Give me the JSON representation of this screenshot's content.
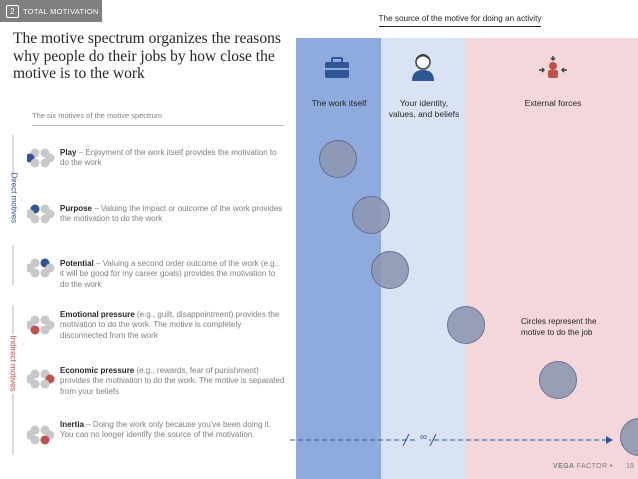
{
  "tag": {
    "number": "2",
    "label": "TOTAL MOTIVATION"
  },
  "heading": "The motive spectrum organizes the reasons why people do their jobs by how close the motive is to the work",
  "subheading": "The six motives of the motive spectrum",
  "band_title": "The source of the motive for doing an activity",
  "columns": {
    "work": "The work itself",
    "identity": "Your identity, values, and beliefs",
    "external": "External forces"
  },
  "groups": {
    "direct": "Direct motives",
    "indirect": "Indirect motives"
  },
  "motives": [
    {
      "name": "Play",
      "desc": " – Enjoyment of the work itself provides the motivation to do the work"
    },
    {
      "name": "Purpose",
      "desc": " – Valuing the impact or outcome of the work provides the motivation to do the work"
    },
    {
      "name": "Potential",
      "desc": " – Valuing a second order outcome of the work (e.g., it will be good for my career goals) provides the motivation to do the work"
    },
    {
      "name": "Emotional pressure",
      "desc": " (e.g., guilt, disappointment) provides the motivation to do the work. The motive is completely disconnected from the work"
    },
    {
      "name": "Economic pressure",
      "desc": " (e.g., rewards, fear of punishment) provides the motivation to do the work. The motive is separated from your beliefs"
    },
    {
      "name": "Inertia",
      "desc": " – Doing the work only because you've been doing it. You can no longer identify the source of the motivation"
    }
  ],
  "note": "Circles represent the motive to do the job",
  "infinity": "∞",
  "brand": {
    "bold": "VEGA",
    "light": " FACTOR",
    "page": "19"
  },
  "colors": {
    "blue": "#2f5597",
    "red": "#c0504d",
    "gray": "#a6a6a6",
    "circle": "#8e98b3"
  }
}
